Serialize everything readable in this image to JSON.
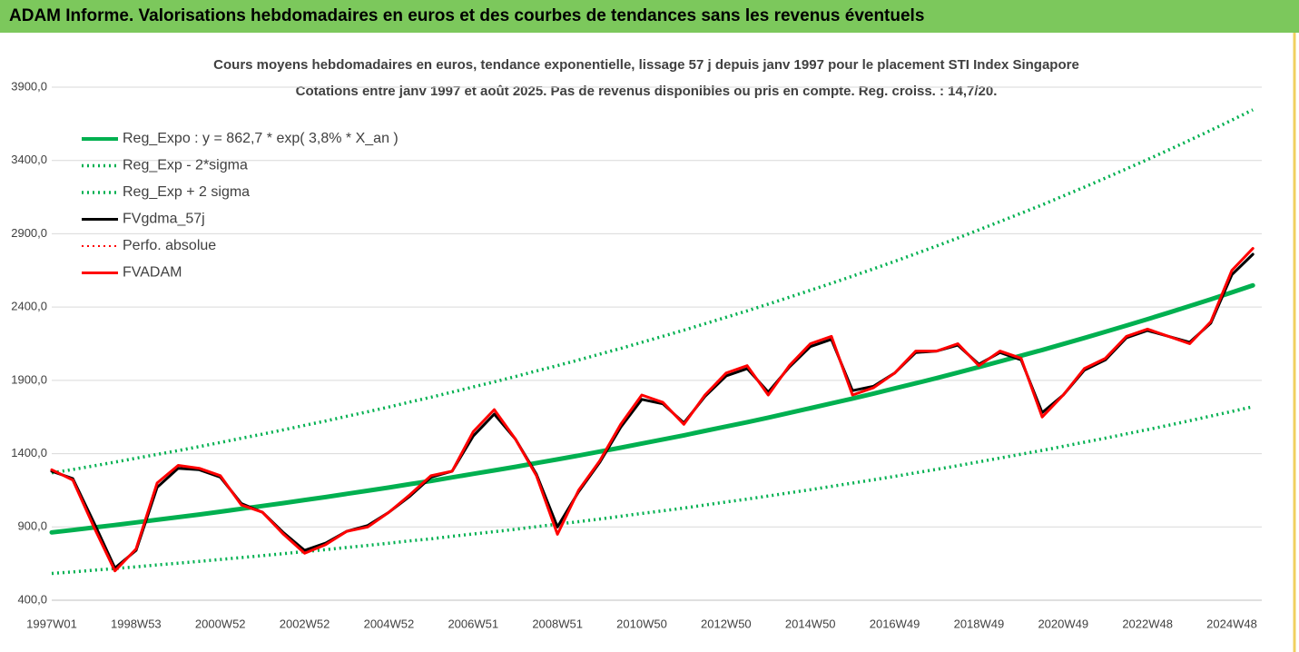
{
  "header": {
    "title": "ADAM Informe. Valorisations hebdomadaires en euros et des courbes de tendances sans les revenus éventuels"
  },
  "chart_data": {
    "type": "line",
    "title": "Cours moyens hebdomadaires en euros, tendance exponentielle, lissage 57 j depuis janv 1997 pour le placement STI Index Singapore",
    "subtitle": "Cotations entre janv 1997 et août 2025. Pas de revenus disponibles ou pris en compte. Reg. croiss. : 14,7/20.",
    "categories": [
      "1997W01",
      null,
      null,
      null,
      "1998W53",
      null,
      null,
      null,
      "2000W52",
      null,
      null,
      null,
      "2002W52",
      null,
      null,
      null,
      "2004W52",
      null,
      null,
      null,
      "2006W51",
      null,
      null,
      null,
      "2008W51",
      null,
      null,
      null,
      "2010W50",
      null,
      null,
      null,
      "2012W50",
      null,
      null,
      null,
      "2014W50",
      null,
      null,
      null,
      "2016W49",
      null,
      null,
      null,
      "2018W49",
      null,
      null,
      null,
      "2020W49",
      null,
      null,
      null,
      "2022W48",
      null,
      null,
      null,
      "2024W48",
      null
    ],
    "series": [
      {
        "name": "Reg_Expo : y = 862,7 * exp( 3,8% *  X_an )",
        "color": "#00b050",
        "style": "solid",
        "width": 5,
        "values": [
          863,
          879,
          896,
          913,
          931,
          949,
          967,
          985,
          1004,
          1024,
          1043,
          1063,
          1084,
          1104,
          1126,
          1147,
          1169,
          1192,
          1214,
          1238,
          1262,
          1286,
          1310,
          1336,
          1361,
          1387,
          1414,
          1441,
          1469,
          1497,
          1525,
          1555,
          1585,
          1615,
          1646,
          1678,
          1710,
          1743,
          1776,
          1810,
          1845,
          1880,
          1916,
          1953,
          1991,
          2029,
          2068,
          2107,
          2148,
          2189,
          2231,
          2274,
          2317,
          2362,
          2407,
          2453,
          2500,
          2548
        ]
      },
      {
        "name": "Reg_Exp - 2*sigma",
        "color": "#00b050",
        "style": "dotted",
        "width": 3.5,
        "values": [
          583,
          593,
          605,
          616,
          628,
          641,
          653,
          665,
          678,
          691,
          704,
          718,
          732,
          745,
          760,
          774,
          789,
          805,
          819,
          836,
          852,
          868,
          884,
          902,
          919,
          936,
          954,
          973,
          992,
          1010,
          1029,
          1050,
          1070,
          1090,
          1111,
          1133,
          1154,
          1177,
          1199,
          1222,
          1245,
          1269,
          1293,
          1318,
          1344,
          1370,
          1396,
          1422,
          1450,
          1478,
          1506,
          1535,
          1564,
          1594,
          1625,
          1656,
          1688,
          1720
        ]
      },
      {
        "name": "Reg_Exp + 2 sigma",
        "color": "#00b050",
        "style": "dotted",
        "width": 3.5,
        "values": [
          1269,
          1292,
          1317,
          1342,
          1369,
          1395,
          1421,
          1448,
          1476,
          1505,
          1533,
          1563,
          1593,
          1623,
          1655,
          1686,
          1718,
          1752,
          1785,
          1820,
          1855,
          1890,
          1926,
          1964,
          2001,
          2039,
          2079,
          2118,
          2159,
          2201,
          2242,
          2286,
          2330,
          2374,
          2420,
          2467,
          2514,
          2562,
          2611,
          2661,
          2712,
          2764,
          2817,
          2871,
          2927,
          2983,
          3040,
          3097,
          3158,
          3218,
          3280,
          3343,
          3406,
          3472,
          3538,
          3606,
          3675,
          3746
        ]
      },
      {
        "name": "FVgdma_57j",
        "color": "#000000",
        "style": "solid",
        "width": 3,
        "values": [
          1280,
          1230,
          930,
          620,
          740,
          1170,
          1300,
          1290,
          1240,
          1060,
          1000,
          860,
          740,
          790,
          870,
          910,
          1000,
          1110,
          1240,
          1280,
          1520,
          1670,
          1500,
          1260,
          900,
          1140,
          1340,
          1580,
          1770,
          1740,
          1610,
          1790,
          1930,
          1980,
          1820,
          1990,
          2130,
          2180,
          1830,
          1860,
          1950,
          2090,
          2100,
          2140,
          2010,
          2090,
          2040,
          1680,
          1800,
          1970,
          2040,
          2190,
          2240,
          2200,
          2160,
          2290,
          2620,
          2760
        ]
      },
      {
        "name": "Perfo. absolue",
        "color": "#ff0000",
        "style": "dotted",
        "width": 2,
        "values": [
          1290,
          1220,
          900,
          600,
          750,
          1200,
          1320,
          1300,
          1250,
          1050,
          1000,
          850,
          720,
          780,
          870,
          900,
          1000,
          1120,
          1250,
          1280,
          1550,
          1700,
          1500,
          1250,
          850,
          1150,
          1350,
          1600,
          1800,
          1750,
          1600,
          1800,
          1950,
          2000,
          1800,
          2000,
          2150,
          2200,
          1800,
          1850,
          1950,
          2100,
          2100,
          2150,
          2000,
          2100,
          2050,
          1650,
          1800,
          1980,
          2050,
          2200,
          2250,
          2200,
          2150,
          2300,
          2650,
          2800
        ]
      },
      {
        "name": "FVADAM",
        "color": "#ff0000",
        "style": "solid",
        "width": 3,
        "values": [
          1290,
          1220,
          900,
          600,
          750,
          1200,
          1320,
          1300,
          1250,
          1050,
          1000,
          850,
          720,
          780,
          870,
          900,
          1000,
          1120,
          1250,
          1280,
          1550,
          1700,
          1500,
          1250,
          850,
          1150,
          1350,
          1600,
          1800,
          1750,
          1600,
          1800,
          1950,
          2000,
          1800,
          2000,
          2150,
          2200,
          1800,
          1850,
          1950,
          2100,
          2100,
          2150,
          2000,
          2100,
          2050,
          1650,
          1800,
          1980,
          2050,
          2200,
          2250,
          2200,
          2150,
          2300,
          2650,
          2800
        ]
      }
    ],
    "ylim": [
      400,
      3900
    ],
    "yticks": [
      {
        "value": 400,
        "label": "400,0"
      },
      {
        "value": 900,
        "label": "900,0"
      },
      {
        "value": 1400,
        "label": "1400,0"
      },
      {
        "value": 1900,
        "label": "1900,0"
      },
      {
        "value": 2400,
        "label": "2400,0"
      },
      {
        "value": 2900,
        "label": "2900,0"
      },
      {
        "value": 3400,
        "label": "3400,0"
      },
      {
        "value": 3900,
        "label": "3900,0"
      }
    ],
    "grid": true,
    "legend": "top-left"
  }
}
